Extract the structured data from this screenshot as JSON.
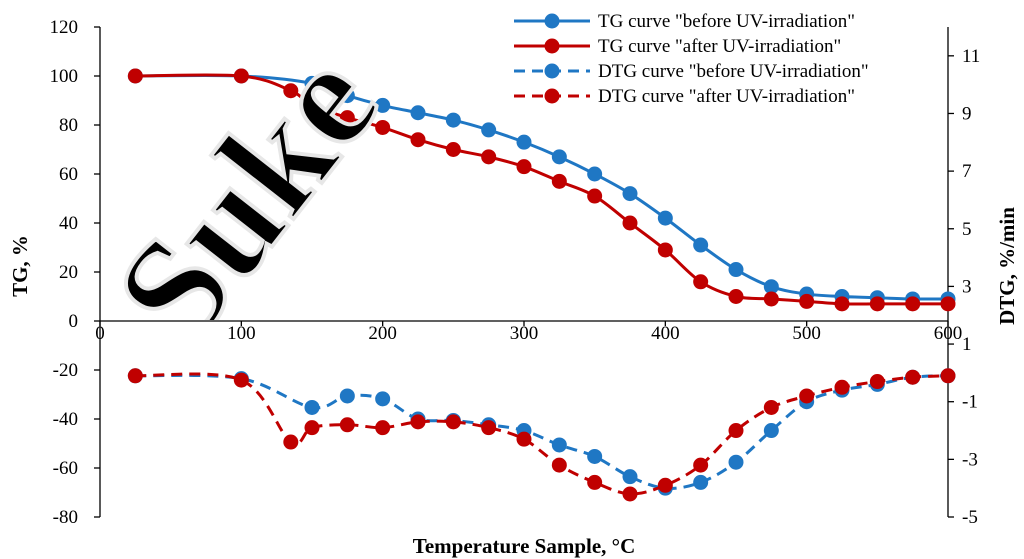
{
  "chart_data": {
    "type": "line",
    "xlabel": "Temperature Sample, °C",
    "ylabel_left": "TG, %",
    "ylabel_right": "DTG, %/min",
    "xlim": [
      0,
      600
    ],
    "ylim_left": [
      -80,
      120
    ],
    "ylim_right": [
      -5,
      12
    ],
    "x_ticks": [
      "0",
      "100",
      "200",
      "300",
      "400",
      "500",
      "600"
    ],
    "y_left_ticks": [
      "120",
      "100",
      "80",
      "60",
      "40",
      "20",
      "0",
      "-20",
      "-40",
      "-60",
      "-80"
    ],
    "y_right_ticks": [
      "11",
      "9",
      "7",
      "5",
      "3",
      "1",
      "-1",
      "-3",
      "-5"
    ],
    "grid": false,
    "legend_position": "top-right",
    "series": [
      {
        "name": "TG curve \"before UV-irradiation\"",
        "axis": "left",
        "style": "solid",
        "color": "#1f77c4",
        "x": [
          25,
          100,
          150,
          175,
          200,
          225,
          250,
          275,
          300,
          325,
          350,
          375,
          400,
          425,
          450,
          475,
          500,
          525,
          550,
          575,
          600
        ],
        "y": [
          100,
          100,
          97,
          92,
          88,
          85,
          82,
          78,
          73,
          67,
          60,
          52,
          42,
          31,
          21,
          14,
          11,
          10,
          9.5,
          9,
          9
        ]
      },
      {
        "name": "TG curve \"after UV-irradiation\"",
        "axis": "left",
        "style": "solid",
        "color": "#c00000",
        "x": [
          25,
          100,
          135,
          150,
          175,
          200,
          225,
          250,
          275,
          300,
          325,
          350,
          375,
          400,
          425,
          450,
          475,
          500,
          525,
          550,
          575,
          600
        ],
        "y": [
          100,
          100,
          94,
          88,
          83,
          79,
          74,
          70,
          67,
          63,
          57,
          51,
          40,
          29,
          16,
          10,
          9,
          8,
          7,
          7,
          7,
          7
        ]
      },
      {
        "name": "DTG curve \"before UV-irradiation\"",
        "axis": "right",
        "style": "dashed",
        "color": "#1f77c4",
        "x": [
          25,
          100,
          150,
          175,
          200,
          225,
          250,
          275,
          300,
          325,
          350,
          375,
          400,
          425,
          450,
          475,
          500,
          525,
          550,
          575,
          600
        ],
        "y": [
          -0.1,
          -0.2,
          -1.2,
          -0.8,
          -0.9,
          -1.6,
          -1.65,
          -1.8,
          -2.0,
          -2.5,
          -2.9,
          -3.6,
          -4.0,
          -3.8,
          -3.1,
          -2.0,
          -1.0,
          -0.6,
          -0.4,
          -0.15,
          -0.1
        ]
      },
      {
        "name": "DTG curve \"after UV-irradiation\"",
        "axis": "right",
        "style": "dashed",
        "color": "#c00000",
        "x": [
          25,
          100,
          135,
          150,
          175,
          200,
          225,
          250,
          275,
          300,
          325,
          350,
          375,
          400,
          425,
          450,
          475,
          500,
          525,
          550,
          575,
          600
        ],
        "y": [
          -0.1,
          -0.25,
          -2.4,
          -1.9,
          -1.8,
          -1.9,
          -1.7,
          -1.7,
          -1.9,
          -2.3,
          -3.2,
          -3.8,
          -4.2,
          -3.9,
          -3.2,
          -2.0,
          -1.2,
          -0.8,
          -0.5,
          -0.3,
          -0.15,
          -0.1
        ]
      }
    ]
  }
}
